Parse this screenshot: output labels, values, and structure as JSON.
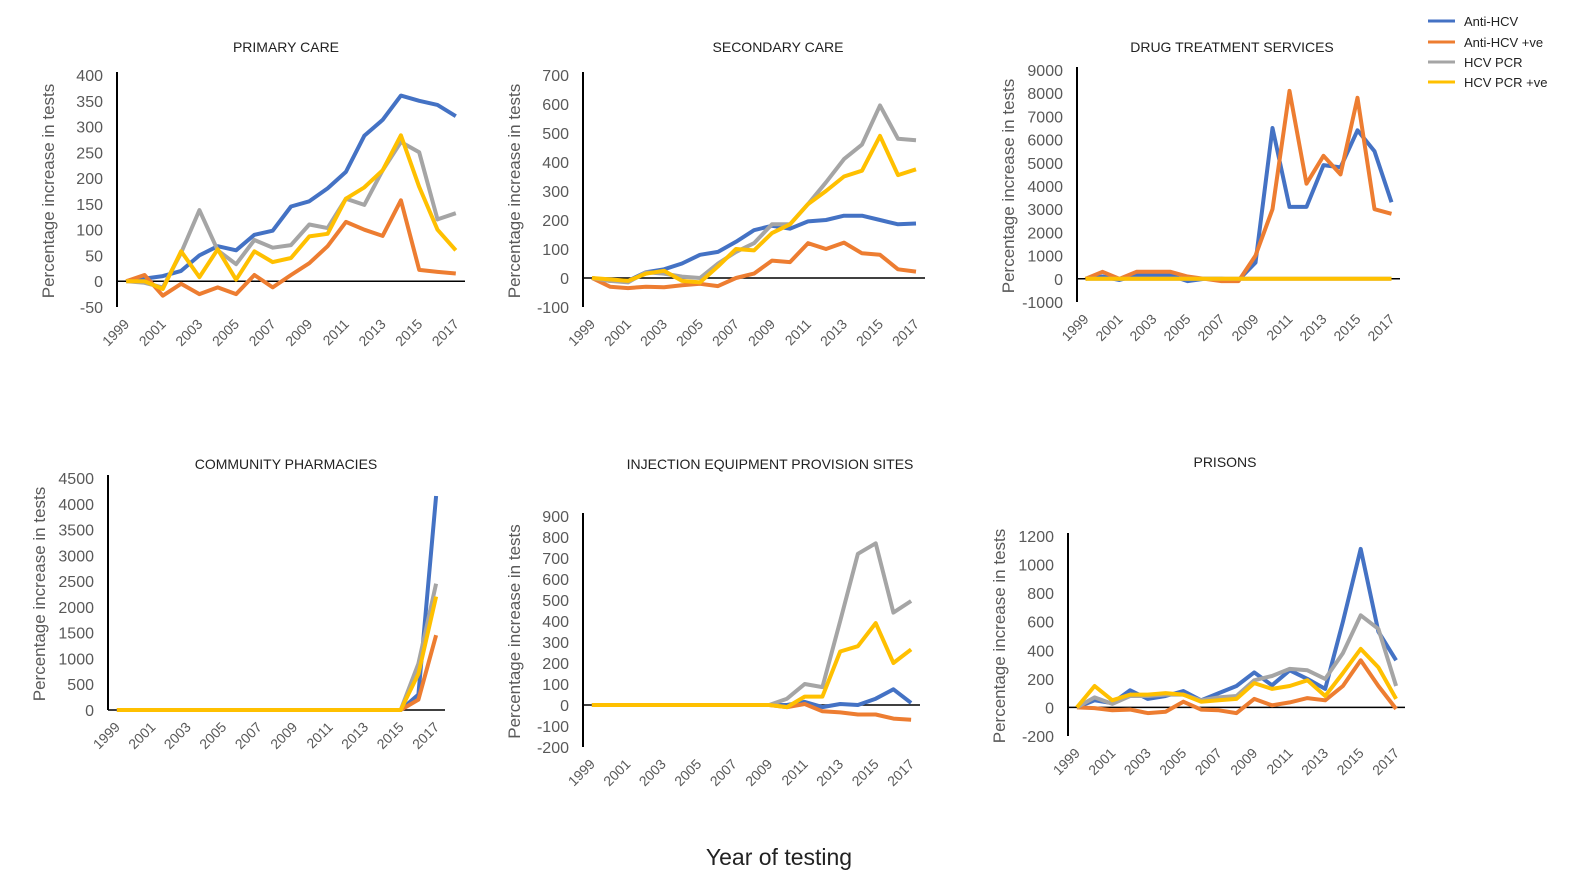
{
  "xlabel": "Year of testing",
  "legend": [
    {
      "name": "Anti-HCV",
      "color": "#4472C4"
    },
    {
      "name": "Anti-HCV +ve",
      "color": "#ED7D31"
    },
    {
      "name": "HCV PCR",
      "color": "#A5A5A5"
    },
    {
      "name": "HCV PCR +ve",
      "color": "#FFC000"
    }
  ],
  "chart_data": [
    {
      "type": "line",
      "title": "PRIMARY CARE",
      "ylabel": "Percentage increase in tests",
      "ylim": [
        -50,
        400
      ],
      "yticks": [
        -50,
        0,
        50,
        100,
        150,
        200,
        250,
        300,
        350,
        400
      ],
      "x": [
        1999,
        2000,
        2001,
        2002,
        2003,
        2004,
        2005,
        2006,
        2007,
        2008,
        2009,
        2010,
        2011,
        2012,
        2013,
        2014,
        2015,
        2016,
        2017
      ],
      "xticks": [
        "1999",
        "2001",
        "2003",
        "2005",
        "2007",
        "2009",
        "2011",
        "2013",
        "2015",
        "2017"
      ],
      "series": [
        {
          "name": "Anti-HCV",
          "values": [
            0,
            5,
            10,
            20,
            50,
            68,
            60,
            90,
            98,
            145,
            155,
            180,
            212,
            282,
            313,
            360,
            350,
            342,
            320
          ]
        },
        {
          "name": "Anti-HCV +ve",
          "values": [
            0,
            12,
            -28,
            -5,
            -25,
            -12,
            -25,
            12,
            -12,
            12,
            35,
            68,
            115,
            100,
            88,
            157,
            22,
            18,
            15
          ]
        },
        {
          "name": "HCV PCR",
          "values": [
            0,
            -3,
            -12,
            55,
            138,
            60,
            33,
            80,
            65,
            70,
            110,
            103,
            160,
            148,
            215,
            270,
            250,
            120,
            132
          ]
        },
        {
          "name": "HCV PCR +ve",
          "values": [
            0,
            0,
            -15,
            58,
            8,
            62,
            3,
            58,
            37,
            45,
            87,
            92,
            160,
            182,
            215,
            283,
            183,
            100,
            60
          ]
        }
      ]
    },
    {
      "type": "line",
      "title": "SECONDARY CARE",
      "ylabel": "Percentage increase in tests",
      "ylim": [
        -100,
        700
      ],
      "yticks": [
        -100,
        0,
        100,
        200,
        300,
        400,
        500,
        600,
        700
      ],
      "x": [
        1999,
        2000,
        2001,
        2002,
        2003,
        2004,
        2005,
        2006,
        2007,
        2008,
        2009,
        2010,
        2011,
        2012,
        2013,
        2014,
        2015,
        2016,
        2017
      ],
      "xticks": [
        "1999",
        "2001",
        "2003",
        "2005",
        "2007",
        "2009",
        "2011",
        "2013",
        "2015",
        "2017"
      ],
      "series": [
        {
          "name": "Anti-HCV",
          "values": [
            0,
            -10,
            -10,
            20,
            30,
            50,
            80,
            90,
            125,
            165,
            180,
            170,
            195,
            200,
            215,
            215,
            200,
            185,
            188
          ]
        },
        {
          "name": "Anti-HCV +ve",
          "values": [
            0,
            -30,
            -35,
            -30,
            -32,
            -25,
            -20,
            -28,
            0,
            15,
            60,
            55,
            120,
            100,
            122,
            85,
            80,
            30,
            22
          ]
        },
        {
          "name": "HCV PCR",
          "values": [
            0,
            -10,
            -15,
            20,
            15,
            5,
            0,
            50,
            90,
            120,
            185,
            185,
            255,
            330,
            410,
            460,
            595,
            480,
            475
          ]
        },
        {
          "name": "HCV PCR +ve",
          "values": [
            0,
            -5,
            -10,
            15,
            25,
            -10,
            -15,
            40,
            100,
            95,
            155,
            185,
            255,
            300,
            350,
            370,
            490,
            355,
            375
          ]
        }
      ]
    },
    {
      "type": "line",
      "title": "DRUG TREATMENT SERVICES",
      "ylabel": "Percentage increase in tests",
      "ylim": [
        -1000,
        9000
      ],
      "yticks": [
        -1000,
        0,
        1000,
        2000,
        3000,
        4000,
        5000,
        6000,
        7000,
        8000,
        9000
      ],
      "x": [
        1999,
        2000,
        2001,
        2002,
        2003,
        2004,
        2005,
        2006,
        2007,
        2008,
        2009,
        2010,
        2011,
        2012,
        2013,
        2014,
        2015,
        2016,
        2017
      ],
      "xticks": [
        "1999",
        "2001",
        "2003",
        "2005",
        "2007",
        "2009",
        "2011",
        "2013",
        "2015",
        "2017"
      ],
      "series": [
        {
          "name": "Anti-HCV",
          "values": [
            0,
            100,
            -50,
            150,
            150,
            150,
            -100,
            0,
            0,
            -50,
            700,
            6500,
            3100,
            3100,
            4900,
            4800,
            6400,
            5500,
            3300
          ]
        },
        {
          "name": "Anti-HCV +ve",
          "values": [
            0,
            300,
            0,
            300,
            300,
            300,
            100,
            0,
            -100,
            -100,
            1000,
            3000,
            8100,
            4100,
            5300,
            4500,
            7800,
            3000,
            2800
          ]
        },
        {
          "name": "HCV PCR",
          "values": [
            0,
            0,
            0,
            0,
            0,
            0,
            0,
            0,
            0,
            0,
            0,
            0,
            0,
            0,
            0,
            0,
            0,
            0,
            0
          ]
        },
        {
          "name": "HCV PCR +ve",
          "values": [
            0,
            0,
            0,
            0,
            0,
            0,
            0,
            0,
            0,
            0,
            0,
            0,
            0,
            0,
            0,
            0,
            0,
            0,
            0
          ]
        }
      ]
    },
    {
      "type": "line",
      "title": "COMMUNITY PHARMACIES",
      "ylabel": "Percentage increase in tests",
      "ylim": [
        0,
        4500
      ],
      "yticks": [
        0,
        500,
        1000,
        1500,
        2000,
        2500,
        3000,
        3500,
        4000,
        4500
      ],
      "x": [
        1999,
        2000,
        2001,
        2002,
        2003,
        2004,
        2005,
        2006,
        2007,
        2008,
        2009,
        2010,
        2011,
        2012,
        2013,
        2014,
        2015,
        2016,
        2017
      ],
      "xticks": [
        "1999",
        "2001",
        "2003",
        "2005",
        "2007",
        "2009",
        "2011",
        "2013",
        "2015",
        "2017"
      ],
      "series": [
        {
          "name": "Anti-HCV",
          "values": [
            0,
            0,
            0,
            0,
            0,
            0,
            0,
            0,
            0,
            0,
            0,
            0,
            0,
            0,
            0,
            0,
            0,
            300,
            4150
          ]
        },
        {
          "name": "Anti-HCV +ve",
          "values": [
            0,
            0,
            0,
            0,
            0,
            0,
            0,
            0,
            0,
            0,
            0,
            0,
            0,
            0,
            0,
            0,
            0,
            200,
            1450
          ]
        },
        {
          "name": "HCV PCR",
          "values": [
            0,
            0,
            0,
            0,
            0,
            0,
            0,
            0,
            0,
            0,
            0,
            0,
            0,
            0,
            0,
            0,
            0,
            900,
            2450
          ]
        },
        {
          "name": "HCV PCR +ve",
          "values": [
            0,
            0,
            0,
            0,
            0,
            0,
            0,
            0,
            0,
            0,
            0,
            0,
            0,
            0,
            0,
            0,
            0,
            700,
            2200
          ]
        }
      ]
    },
    {
      "type": "line",
      "title": "INJECTION EQUIPMENT PROVISION SITES",
      "ylabel": "Percentage increase in tests",
      "ylim": [
        -200,
        900
      ],
      "yticks": [
        -200,
        -100,
        0,
        100,
        200,
        300,
        400,
        500,
        600,
        700,
        800,
        900
      ],
      "x": [
        1999,
        2000,
        2001,
        2002,
        2003,
        2004,
        2005,
        2006,
        2007,
        2008,
        2009,
        2010,
        2011,
        2012,
        2013,
        2014,
        2015,
        2016,
        2017
      ],
      "xticks": [
        "1999",
        "2001",
        "2003",
        "2005",
        "2007",
        "2009",
        "2011",
        "2013",
        "2015",
        "2017"
      ],
      "series": [
        {
          "name": "Anti-HCV",
          "values": [
            0,
            0,
            0,
            0,
            0,
            0,
            0,
            0,
            0,
            0,
            0,
            0,
            15,
            -10,
            5,
            0,
            30,
            75,
            10
          ]
        },
        {
          "name": "Anti-HCV +ve",
          "values": [
            0,
            0,
            0,
            0,
            0,
            0,
            0,
            0,
            0,
            0,
            0,
            -10,
            5,
            -30,
            -35,
            -45,
            -45,
            -65,
            -70
          ]
        },
        {
          "name": "HCV PCR",
          "values": [
            0,
            0,
            0,
            0,
            0,
            0,
            0,
            0,
            0,
            0,
            0,
            30,
            100,
            85,
            400,
            720,
            770,
            440,
            495
          ]
        },
        {
          "name": "HCV PCR +ve",
          "values": [
            0,
            0,
            0,
            0,
            0,
            0,
            0,
            0,
            0,
            0,
            0,
            -10,
            40,
            40,
            255,
            280,
            390,
            200,
            265
          ]
        }
      ]
    },
    {
      "type": "line",
      "title": "PRISONS",
      "ylabel": "Percentage increase in tests",
      "ylim": [
        -200,
        1200
      ],
      "yticks": [
        -200,
        0,
        200,
        400,
        600,
        800,
        1000,
        1200
      ],
      "x": [
        1999,
        2000,
        2001,
        2002,
        2003,
        2004,
        2005,
        2006,
        2007,
        2008,
        2009,
        2010,
        2011,
        2012,
        2013,
        2014,
        2015,
        2016,
        2017
      ],
      "xticks": [
        "1999",
        "2001",
        "2003",
        "2005",
        "2007",
        "2009",
        "2011",
        "2013",
        "2015",
        "2017"
      ],
      "series": [
        {
          "name": "Anti-HCV",
          "values": [
            0,
            50,
            30,
            120,
            60,
            80,
            115,
            50,
            100,
            150,
            245,
            155,
            260,
            200,
            130,
            600,
            1110,
            530,
            330
          ]
        },
        {
          "name": "Anti-HCV +ve",
          "values": [
            0,
            -5,
            -20,
            -15,
            -40,
            -30,
            40,
            -15,
            -20,
            -40,
            60,
            15,
            35,
            65,
            50,
            150,
            330,
            150,
            -10
          ]
        },
        {
          "name": "HCV PCR",
          "values": [
            0,
            70,
            25,
            80,
            80,
            90,
            90,
            50,
            70,
            80,
            190,
            220,
            270,
            260,
            200,
            380,
            645,
            550,
            150
          ]
        },
        {
          "name": "HCV PCR +ve",
          "values": [
            0,
            150,
            50,
            90,
            90,
            100,
            90,
            40,
            50,
            60,
            170,
            130,
            150,
            190,
            80,
            240,
            410,
            280,
            60
          ]
        }
      ]
    }
  ]
}
